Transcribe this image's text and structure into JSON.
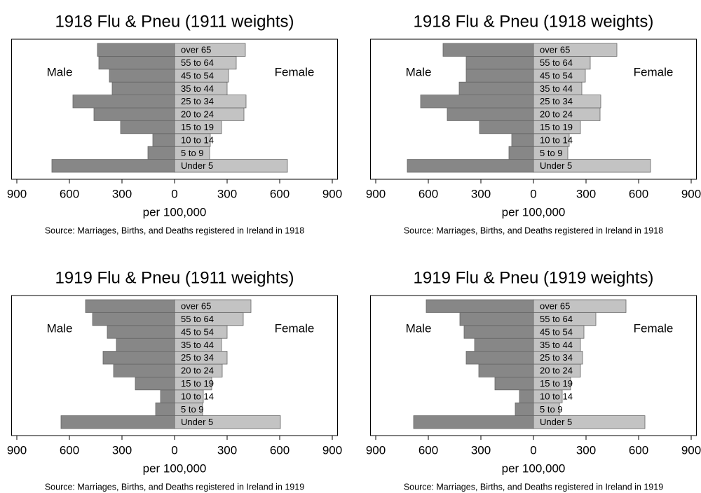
{
  "chart_data": [
    {
      "type": "pyramid",
      "title": "1918 Flu & Pneu (1911 weights)",
      "xlabel": "per 100,000",
      "note": "Source: Marriages, Births, and Deaths registered in Ireland in 1918",
      "categories": [
        "Under 5",
        "5 to 9",
        "10 to 14",
        "15 to 19",
        "20 to 24",
        "25 to 34",
        "35 to 44",
        "45 to 54",
        "55 to 64",
        "over 65"
      ],
      "series": [
        {
          "name": "Male",
          "color": "#878787",
          "values": [
            -700,
            -152,
            -124,
            -308,
            -460,
            -580,
            -356,
            -372,
            -432,
            -440
          ]
        },
        {
          "name": "Female",
          "color": "#c3c3c3",
          "values": [
            644,
            200,
            204,
            268,
            396,
            408,
            300,
            308,
            352,
            404
          ]
        }
      ],
      "xlim": [
        -930,
        930
      ],
      "xticks": [
        {
          "value": -900,
          "label": "900"
        },
        {
          "value": -600,
          "label": "600"
        },
        {
          "value": -300,
          "label": "300"
        },
        0,
        300,
        600,
        900
      ]
    },
    {
      "type": "pyramid",
      "title": "1918 Flu & Pneu (1918 weights)",
      "xlabel": "per 100,000",
      "note": "Source: Marriages, Births, and Deaths registered in Ireland in 1918",
      "categories": [
        "Under 5",
        "5 to 9",
        "10 to 14",
        "15 to 19",
        "20 to 24",
        "25 to 34",
        "35 to 44",
        "45 to 54",
        "55 to 64",
        "over 65"
      ],
      "series": [
        {
          "name": "Male",
          "color": "#878787",
          "values": [
            -720,
            -140,
            -124,
            -308,
            -492,
            -644,
            -424,
            -384,
            -384,
            -516
          ]
        },
        {
          "name": "Female",
          "color": "#c3c3c3",
          "values": [
            668,
            196,
            204,
            268,
            380,
            384,
            276,
            296,
            324,
            476
          ]
        }
      ],
      "xlim": [
        -930,
        930
      ],
      "xticks": [
        {
          "value": -900,
          "label": "900"
        },
        {
          "value": -600,
          "label": "600"
        },
        {
          "value": -300,
          "label": "300"
        },
        0,
        300,
        600,
        900
      ]
    },
    {
      "type": "pyramid",
      "title": "1919 Flu & Pneu (1911 weights)",
      "xlabel": "per 100,000",
      "note": "Source: Marriages, Births, and Deaths registered in Ireland in 1919",
      "categories": [
        "Under 5",
        "5 to 9",
        "10 to 14",
        "15 to 19",
        "20 to 24",
        "25 to 34",
        "35 to 44",
        "45 to 54",
        "55 to 64",
        "over 65"
      ],
      "series": [
        {
          "name": "Male",
          "color": "#878787",
          "values": [
            -648,
            -108,
            -80,
            -224,
            -348,
            -408,
            -332,
            -384,
            -468,
            -508
          ]
        },
        {
          "name": "Female",
          "color": "#c3c3c3",
          "values": [
            604,
            160,
            164,
            212,
            272,
            300,
            268,
            300,
            392,
            436
          ]
        }
      ],
      "xlim": [
        -930,
        930
      ],
      "xticks": [
        {
          "value": -900,
          "label": "900"
        },
        {
          "value": -600,
          "label": "600"
        },
        {
          "value": -300,
          "label": "300"
        },
        0,
        300,
        600,
        900
      ]
    },
    {
      "type": "pyramid",
      "title": "1919 Flu & Pneu (1919 weights)",
      "xlabel": "per 100,000",
      "note": "Source: Marriages, Births, and Deaths registered in Ireland in 1919",
      "categories": [
        "Under 5",
        "5 to 9",
        "10 to 14",
        "15 to 19",
        "20 to 24",
        "25 to 34",
        "35 to 44",
        "45 to 54",
        "55 to 64",
        "over 65"
      ],
      "series": [
        {
          "name": "Male",
          "color": "#878787",
          "values": [
            -684,
            -104,
            -80,
            -220,
            -312,
            -384,
            -336,
            -396,
            -420,
            -612
          ]
        },
        {
          "name": "Female",
          "color": "#c3c3c3",
          "values": [
            636,
            148,
            164,
            212,
            268,
            280,
            268,
            288,
            356,
            528
          ]
        }
      ],
      "xlim": [
        -930,
        930
      ],
      "xticks": [
        {
          "value": -900,
          "label": "900"
        },
        {
          "value": -600,
          "label": "600"
        },
        {
          "value": -300,
          "label": "300"
        },
        0,
        300,
        600,
        900
      ]
    }
  ]
}
